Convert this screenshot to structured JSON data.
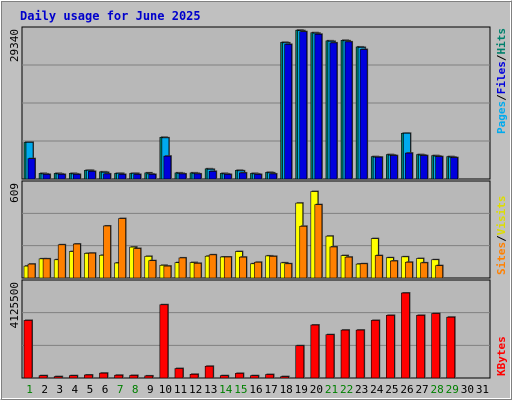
{
  "title": "Daily usage for June 2025",
  "colors": {
    "background": "#c0c0c0",
    "panel": "#b8b8b8",
    "pages": "#0000dd",
    "files": "#00aaee",
    "hits": "#00806c",
    "visits": "#ffff00",
    "sites": "#ff8000",
    "kbytes": "#ff0000",
    "weekend": "#008000"
  },
  "legend": {
    "top": [
      {
        "label": "Pages",
        "color": "#00aaee"
      },
      {
        "label": "/",
        "color": "#000000"
      },
      {
        "label": "Files",
        "color": "#0000dd"
      },
      {
        "label": "/",
        "color": "#000000"
      },
      {
        "label": "Hits",
        "color": "#00806c"
      }
    ],
    "middle": [
      {
        "label": "Sites",
        "color": "#ff8000"
      },
      {
        "label": "/",
        "color": "#000000"
      },
      {
        "label": "Visits",
        "color": "#dddd00"
      }
    ],
    "bottom": [
      {
        "label": "KBytes",
        "color": "#ff0000"
      }
    ]
  },
  "chart_data": {
    "type": "bar",
    "title": "Daily usage for June 2025",
    "days": [
      "1",
      "2",
      "3",
      "4",
      "5",
      "6",
      "7",
      "8",
      "9",
      "10",
      "11",
      "12",
      "13",
      "14",
      "15",
      "16",
      "17",
      "18",
      "19",
      "20",
      "21",
      "22",
      "23",
      "24",
      "25",
      "26",
      "27",
      "28",
      "29",
      "30",
      "31"
    ],
    "weekend_days": [
      "1",
      "7",
      "8",
      "14",
      "15",
      "21",
      "22",
      "28",
      "29"
    ],
    "panels": [
      {
        "name": "hits-files-pages",
        "max_label": "29340",
        "ylim": [
          0,
          29340
        ],
        "series": [
          {
            "name": "Hits",
            "values": [
              7200,
              1100,
              1100,
              1100,
              1700,
              1400,
              1100,
              1100,
              1200,
              8200,
              1200,
              1200,
              2000,
              1100,
              1700,
              1100,
              1300,
              26900,
              29300,
              28800,
              27200,
              27300,
              26000,
              4400,
              4800,
              9000,
              4800,
              4600,
              4400,
              0,
              0
            ]
          },
          {
            "name": "Files",
            "values": [
              7200,
              1000,
              1000,
              1000,
              1700,
              1300,
              1100,
              1100,
              1000,
              8100,
              1100,
              1100,
              1900,
              1000,
              1600,
              1000,
              1200,
              26800,
              29200,
              28700,
              27100,
              27200,
              25900,
              4300,
              4700,
              9000,
              4700,
              4500,
              4300,
              0,
              0
            ]
          },
          {
            "name": "Pages",
            "values": [
              4000,
              900,
              900,
              900,
              1500,
              1000,
              900,
              900,
              900,
              4500,
              1000,
              1000,
              1500,
              900,
              1200,
              900,
              1000,
              26500,
              29000,
              28500,
              26800,
              27000,
              25500,
              4300,
              4600,
              5100,
              4600,
              4400,
              4200,
              0,
              0
            ]
          }
        ]
      },
      {
        "name": "visits-sites",
        "max_label": "609",
        "ylim": [
          0,
          609
        ],
        "series": [
          {
            "name": "Visits",
            "values": [
              77,
              124,
              118,
              171,
              159,
              147,
              97,
              200,
              140,
              82,
              99,
              100,
              141,
              136,
              171,
              92,
              143,
              98,
              485,
              560,
              271,
              145,
              90,
              255,
              131,
              137,
              126,
              118,
              0,
              0,
              0
            ]
          },
          {
            "name": "Sites",
            "values": [
              90,
              124,
              215,
              220,
              161,
              337,
              385,
              191,
              112,
              77,
              130,
              95,
              150,
              136,
              135,
              102,
              140,
              92,
              335,
              475,
              201,
              135,
              92,
              145,
              110,
              102,
              98,
              80,
              0,
              0,
              0
            ]
          }
        ]
      },
      {
        "name": "kbytes",
        "max_label": "4125500",
        "ylim": [
          0,
          4125500
        ],
        "series": [
          {
            "name": "KBytes",
            "values": [
              2500000,
              100000,
              60000,
              100000,
              130000,
              210000,
              120000,
              110000,
              90000,
              3180000,
              410000,
              160000,
              510000,
              100000,
              200000,
              100000,
              150000,
              60000,
              1400000,
              2300000,
              1880000,
              2080000,
              2080000,
              2500000,
              2720000,
              3690000,
              2720000,
              2800000,
              2640000,
              0,
              0
            ]
          }
        ]
      }
    ]
  }
}
